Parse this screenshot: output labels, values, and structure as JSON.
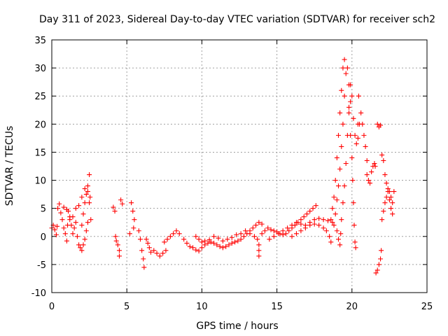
{
  "chart_data": {
    "type": "scatter",
    "title": "Day 311 of 2023, Sidereal Day-to-day VTEC variation (SDTVAR) for receiver sch2",
    "xlabel": "GPS time / hours",
    "ylabel": "SDTVAR / TECUs",
    "xlim": [
      0,
      25
    ],
    "ylim": [
      -10,
      35
    ],
    "xticks": [
      "0",
      "5",
      "10",
      "15",
      "20",
      "25"
    ],
    "yticks": [
      "-10",
      "-5",
      "0",
      "5",
      "10",
      "15",
      "20",
      "25",
      "30",
      "35"
    ],
    "grid": true,
    "marker": "+",
    "series": [
      {
        "name": "SDTVAR",
        "color": "#ff0000",
        "segments": [
          [
            [
              0.0,
              1.5
            ],
            [
              0.1,
              2.0
            ],
            [
              0.2,
              1.2
            ],
            [
              0.3,
              0.3
            ],
            [
              0.35,
              1.8
            ]
          ],
          [
            [
              0.4,
              5.0
            ],
            [
              0.5,
              5.8
            ],
            [
              0.6,
              4.2
            ],
            [
              0.7,
              3.0
            ],
            [
              0.8,
              1.5
            ],
            [
              0.9,
              0.5
            ],
            [
              1.0,
              -0.8
            ],
            [
              1.05,
              2.0
            ],
            [
              1.1,
              4.5
            ],
            [
              1.2,
              3.5
            ],
            [
              1.3,
              2.0
            ],
            [
              1.4,
              0.5
            ],
            [
              1.5,
              1.5
            ],
            [
              1.6,
              2.5
            ],
            [
              1.7,
              0.0
            ],
            [
              1.8,
              -1.5
            ],
            [
              1.9,
              -2.0
            ],
            [
              2.0,
              2.0
            ],
            [
              2.1,
              4.0
            ],
            [
              2.2,
              6.0
            ],
            [
              2.3,
              7.5
            ],
            [
              2.4,
              9.0
            ],
            [
              2.5,
              11.0
            ],
            [
              2.55,
              7.0
            ],
            [
              2.6,
              3.0
            ]
          ],
          [
            [
              0.8,
              5.2
            ],
            [
              1.0,
              4.8
            ],
            [
              1.2,
              3.0
            ],
            [
              1.4,
              3.5
            ],
            [
              1.6,
              5.0
            ],
            [
              1.8,
              5.5
            ],
            [
              2.0,
              7.0
            ],
            [
              2.2,
              8.5
            ],
            [
              2.4,
              8.0
            ],
            [
              2.5,
              6.0
            ],
            [
              2.4,
              2.5
            ],
            [
              2.3,
              1.0
            ],
            [
              2.2,
              -0.5
            ],
            [
              2.1,
              -1.5
            ],
            [
              2.0,
              -2.5
            ]
          ],
          [
            [
              4.1,
              5.2
            ],
            [
              4.2,
              4.5
            ],
            [
              4.25,
              0.0
            ],
            [
              4.3,
              -0.8
            ],
            [
              4.4,
              -1.5
            ],
            [
              4.5,
              -2.5
            ],
            [
              4.5,
              -3.5
            ]
          ],
          [
            [
              4.6,
              6.5
            ],
            [
              4.7,
              5.8
            ]
          ],
          [
            [
              5.2,
              0.5
            ],
            [
              5.3,
              6.0
            ],
            [
              5.4,
              4.5
            ],
            [
              5.5,
              3.0
            ],
            [
              5.45,
              1.5
            ]
          ],
          [
            [
              5.8,
              1.0
            ],
            [
              5.9,
              -0.5
            ],
            [
              6.0,
              -2.5
            ],
            [
              6.1,
              -4.0
            ],
            [
              6.15,
              -5.5
            ]
          ],
          [
            [
              6.3,
              -0.5
            ],
            [
              6.4,
              -1.2
            ],
            [
              6.5,
              -2.0
            ],
            [
              6.6,
              -2.8
            ],
            [
              6.8,
              -2.5
            ],
            [
              7.0,
              -3.0
            ],
            [
              7.2,
              -3.5
            ],
            [
              7.4,
              -3.0
            ],
            [
              7.6,
              -2.5
            ]
          ],
          [
            [
              7.5,
              -1.0
            ],
            [
              7.7,
              -0.5
            ],
            [
              7.9,
              0.0
            ],
            [
              8.1,
              0.5
            ],
            [
              8.3,
              1.0
            ],
            [
              8.5,
              0.5
            ]
          ],
          [
            [
              8.8,
              -0.5
            ],
            [
              9.0,
              -1.2
            ],
            [
              9.2,
              -1.8
            ],
            [
              9.4,
              -2.0
            ],
            [
              9.6,
              -2.4
            ],
            [
              9.8,
              -2.6
            ],
            [
              10.0,
              -2.0
            ],
            [
              10.2,
              -1.5
            ],
            [
              10.4,
              -1.2
            ],
            [
              10.6,
              -1.0
            ],
            [
              10.8,
              -1.2
            ],
            [
              11.0,
              -1.5
            ],
            [
              11.2,
              -1.8
            ],
            [
              11.4,
              -2.0
            ],
            [
              11.6,
              -1.8
            ],
            [
              11.8,
              -1.5
            ],
            [
              12.0,
              -1.2
            ],
            [
              12.2,
              -1.0
            ],
            [
              12.4,
              -0.8
            ],
            [
              12.6,
              -0.5
            ],
            [
              12.8,
              0.0
            ],
            [
              13.0,
              0.5
            ],
            [
              13.2,
              1.0
            ],
            [
              13.4,
              1.5
            ],
            [
              13.6,
              2.0
            ],
            [
              13.8,
              2.5
            ],
            [
              14.0,
              2.2
            ]
          ],
          [
            [
              9.6,
              0.0
            ],
            [
              9.8,
              -0.5
            ],
            [
              10.0,
              -1.0
            ],
            [
              10.2,
              -0.8
            ],
            [
              10.5,
              -0.6
            ],
            [
              10.8,
              0.0
            ],
            [
              11.1,
              -0.3
            ],
            [
              11.4,
              -0.8
            ],
            [
              11.7,
              -0.5
            ],
            [
              12.0,
              -0.2
            ],
            [
              12.3,
              0.3
            ],
            [
              12.6,
              0.5
            ],
            [
              12.9,
              1.0
            ],
            [
              13.2,
              0.5
            ],
            [
              13.5,
              0.0
            ],
            [
              13.7,
              -0.5
            ],
            [
              13.8,
              -1.5
            ],
            [
              13.8,
              -2.5
            ],
            [
              13.8,
              -3.5
            ]
          ],
          [
            [
              14.0,
              0.5
            ],
            [
              14.2,
              1.0
            ],
            [
              14.4,
              1.5
            ],
            [
              14.6,
              1.2
            ],
            [
              14.8,
              1.0
            ],
            [
              15.0,
              0.8
            ],
            [
              15.2,
              0.5
            ],
            [
              15.4,
              0.3
            ],
            [
              15.6,
              0.5
            ],
            [
              15.8,
              1.0
            ],
            [
              16.0,
              1.5
            ],
            [
              16.2,
              2.0
            ],
            [
              16.4,
              2.5
            ],
            [
              16.6,
              3.0
            ],
            [
              16.8,
              3.5
            ],
            [
              17.0,
              4.0
            ],
            [
              17.2,
              4.5
            ],
            [
              17.4,
              5.0
            ],
            [
              17.6,
              5.5
            ]
          ],
          [
            [
              14.5,
              -0.5
            ],
            [
              14.8,
              0.0
            ],
            [
              15.1,
              0.5
            ],
            [
              15.4,
              1.0
            ],
            [
              15.7,
              1.5
            ],
            [
              16.0,
              2.0
            ],
            [
              16.3,
              2.5
            ],
            [
              16.6,
              2.2
            ],
            [
              16.9,
              2.0
            ],
            [
              17.2,
              2.5
            ],
            [
              17.5,
              3.0
            ],
            [
              17.8,
              3.2
            ],
            [
              18.1,
              3.0
            ],
            [
              18.4,
              2.8
            ],
            [
              18.7,
              2.5
            ]
          ],
          [
            [
              16.0,
              0.0
            ],
            [
              16.3,
              0.5
            ],
            [
              16.6,
              1.0
            ],
            [
              16.9,
              1.5
            ],
            [
              17.2,
              2.0
            ],
            [
              17.5,
              2.2
            ],
            [
              17.8,
              2.0
            ],
            [
              18.1,
              1.5
            ],
            [
              18.3,
              1.0
            ],
            [
              18.5,
              0.0
            ],
            [
              18.6,
              -1.0
            ]
          ],
          [
            [
              18.6,
              3.0
            ],
            [
              18.7,
              5.0
            ],
            [
              18.8,
              7.0
            ],
            [
              18.9,
              10.0
            ],
            [
              19.0,
              14.0
            ],
            [
              19.1,
              18.0
            ],
            [
              19.2,
              22.0
            ],
            [
              19.3,
              26.0
            ],
            [
              19.4,
              30.0
            ],
            [
              19.5,
              31.5
            ]
          ],
          [
            [
              18.8,
              2.0
            ],
            [
              18.9,
              4.0
            ],
            [
              19.0,
              6.5
            ],
            [
              19.1,
              9.0
            ],
            [
              19.2,
              12.0
            ],
            [
              19.3,
              16.0
            ],
            [
              19.4,
              20.0
            ],
            [
              19.5,
              25.0
            ],
            [
              19.6,
              29.0
            ],
            [
              19.7,
              30.0
            ],
            [
              19.8,
              27.0
            ],
            [
              19.9,
              24.0
            ]
          ],
          [
            [
              19.0,
              1.0
            ],
            [
              19.1,
              -0.5
            ],
            [
              19.2,
              -1.5
            ],
            [
              19.25,
              0.5
            ],
            [
              19.3,
              3.0
            ],
            [
              19.4,
              6.0
            ],
            [
              19.5,
              9.0
            ],
            [
              19.6,
              13.0
            ],
            [
              19.7,
              18.0
            ],
            [
              19.8,
              23.0
            ],
            [
              19.9,
              27.0
            ],
            [
              20.0,
              25.0
            ],
            [
              20.1,
              21.0
            ],
            [
              20.2,
              18.0
            ],
            [
              20.3,
              16.5
            ],
            [
              20.4,
              17.5
            ],
            [
              20.5,
              20.0
            ],
            [
              20.6,
              22.0
            ],
            [
              20.7,
              20.0
            ],
            [
              20.8,
              18.0
            ],
            [
              20.9,
              16.0
            ],
            [
              21.0,
              13.5
            ]
          ],
          [
            [
              19.8,
              22.0
            ],
            [
              19.9,
              18.0
            ],
            [
              20.0,
              14.0
            ],
            [
              20.05,
              10.0
            ],
            [
              20.1,
              6.0
            ],
            [
              20.15,
              2.0
            ],
            [
              20.2,
              -1.0
            ],
            [
              20.25,
              -2.0
            ]
          ],
          [
            [
              20.4,
              20.0
            ],
            [
              20.45,
              25.0
            ]
          ],
          [
            [
              21.0,
              11.0
            ],
            [
              21.1,
              10.0
            ],
            [
              21.2,
              9.5
            ],
            [
              21.3,
              11.5
            ],
            [
              21.4,
              12.5
            ],
            [
              21.5,
              13.0
            ],
            [
              21.55,
              12.5
            ]
          ],
          [
            [
              21.6,
              -6.5
            ],
            [
              21.7,
              -6.0
            ],
            [
              21.8,
              -5.0
            ],
            [
              21.9,
              -4.0
            ],
            [
              21.95,
              -2.5
            ]
          ],
          [
            [
              21.7,
              20.0
            ],
            [
              21.8,
              19.5
            ],
            [
              21.9,
              19.8
            ]
          ],
          [
            [
              22.0,
              14.5
            ],
            [
              22.1,
              13.5
            ],
            [
              22.2,
              11.0
            ],
            [
              22.3,
              9.5
            ],
            [
              22.4,
              8.0
            ],
            [
              22.5,
              6.5
            ],
            [
              22.6,
              5.0
            ],
            [
              22.7,
              4.0
            ]
          ],
          [
            [
              22.0,
              3.0
            ],
            [
              22.1,
              4.5
            ],
            [
              22.2,
              6.0
            ],
            [
              22.3,
              7.0
            ],
            [
              22.4,
              8.5
            ],
            [
              22.5,
              8.0
            ],
            [
              22.6,
              7.0
            ],
            [
              22.7,
              6.0
            ],
            [
              22.8,
              8.0
            ]
          ]
        ]
      }
    ]
  }
}
